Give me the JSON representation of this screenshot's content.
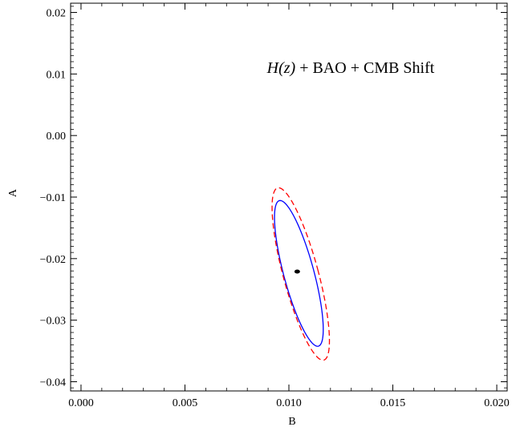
{
  "chart_data": {
    "type": "contour",
    "xlabel": "B",
    "ylabel": "A",
    "annotation": {
      "text": "H(z) + BAO + CMB Shift",
      "italic_part": "H(z)",
      "rest": " + BAO + CMB Shift"
    },
    "xlim": [
      -0.0005,
      0.0205
    ],
    "ylim": [
      -0.0415,
      0.0215
    ],
    "xticks": [
      0.0,
      0.005,
      0.01,
      0.015,
      0.02
    ],
    "xtick_labels": [
      "0.000",
      "0.005",
      "0.010",
      "0.015",
      "0.020"
    ],
    "yticks": [
      -0.04,
      -0.03,
      -0.02,
      -0.01,
      0.0,
      0.01,
      0.02
    ],
    "ytick_labels": [
      "−0.04",
      "−0.03",
      "−0.02",
      "−0.01",
      "0.00",
      "0.01",
      "0.02"
    ],
    "grid": false,
    "best_fit": {
      "x": 0.0104,
      "y": -0.0221,
      "color": "#000000"
    },
    "contours": [
      {
        "level": "1-sigma",
        "style": "solid",
        "color": "#0000ff",
        "center": [
          0.01048,
          -0.0224
        ],
        "extent_x": [
          0.00875,
          0.01221
        ],
        "extent_y": [
          -0.0344,
          -0.0104
        ]
      },
      {
        "level": "2-sigma",
        "style": "dashed",
        "color": "#ff0000",
        "center": [
          0.01057,
          -0.0225
        ],
        "extent_x": [
          0.00855,
          0.01258
        ],
        "extent_y": [
          -0.0367,
          -0.0083
        ]
      }
    ]
  }
}
